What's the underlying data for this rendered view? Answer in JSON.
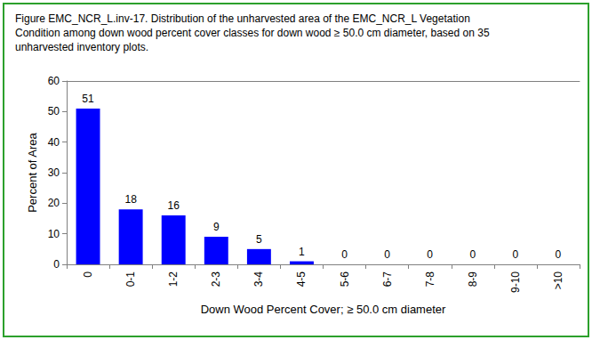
{
  "chart_data": {
    "type": "bar",
    "title": "Figure EMC_NCR_L.inv-17. Distribution of the unharvested area of the EMC_NCR_L Vegetation Condition among down wood percent cover classes for down wood ≥ 50.0 cm diameter, based on 35 unharvested inventory plots.",
    "x_label": "Down Wood Percent Cover; ≥ 50.0 cm diameter",
    "y_label": "Percent of Area",
    "categories": [
      "0",
      "0-1",
      "1-2",
      "2-3",
      "3-4",
      "4-5",
      "5-6",
      "6-7",
      "7-8",
      "8-9",
      "9-10",
      ">10"
    ],
    "values": [
      51,
      18,
      16,
      9,
      5,
      1,
      0,
      0,
      0,
      0,
      0,
      0
    ],
    "color": "#0000ff",
    "ylim": [
      0,
      60
    ],
    "yticks": [
      0,
      10,
      20,
      30,
      40,
      50,
      60
    ],
    "grid": false,
    "data_labels": true
  }
}
